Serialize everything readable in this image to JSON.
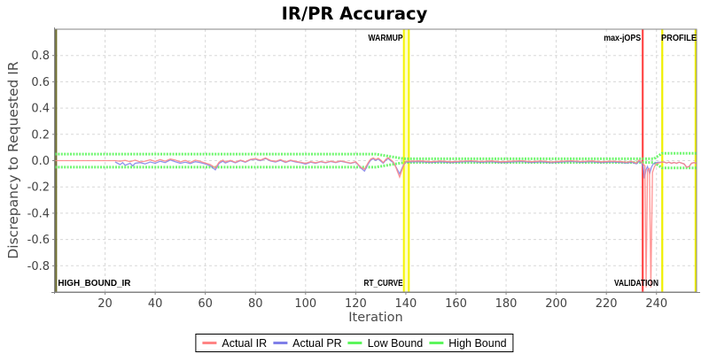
{
  "title": "IR/PR Accuracy",
  "chart_data": {
    "type": "line",
    "title": "IR/PR Accuracy",
    "xlabel": "Iteration",
    "ylabel": "Discrepancy to Requested IR",
    "xlim": [
      0,
      256
    ],
    "ylim": [
      -1,
      1
    ],
    "xticks": [
      20,
      40,
      60,
      80,
      100,
      120,
      140,
      160,
      180,
      200,
      220,
      240
    ],
    "yticks": [
      {
        "v": 0.8,
        "label": "0.8"
      },
      {
        "v": 0.6,
        "label": "0.6"
      },
      {
        "v": 0.4,
        "label": "0.4"
      },
      {
        "v": 0.2,
        "label": "0.2"
      },
      {
        "v": 0.0,
        "label": "0.0"
      },
      {
        "v": -0.2,
        "label": "-0.2"
      },
      {
        "v": -0.4,
        "label": "-0.4"
      },
      {
        "v": -0.6,
        "label": "-0.6"
      },
      {
        "v": -0.8,
        "label": "-0.8"
      }
    ],
    "grid": true,
    "legend_position": "bottom",
    "colors": {
      "actual_ir": "#ff8585",
      "actual_pr": "#7f7fe8",
      "bound": "#5cf65c",
      "marker_yellow": "#f0f000",
      "marker_red": "#ff3333",
      "band_fill": "#ffffc4",
      "border": "#848484",
      "border_left_olive": "#6f6f2d",
      "grid": "#d8d8d8",
      "tick_text": "#434343"
    },
    "series": [
      {
        "name": "Low Bound",
        "color": "#5cf65c",
        "width": 3,
        "opacity": 0.88,
        "dash": "2,1.4",
        "points": [
          [
            0,
            -0.05
          ],
          [
            128,
            -0.05
          ],
          [
            139.3,
            -0.014
          ],
          [
            239,
            -0.014
          ],
          [
            242.2,
            -0.055
          ],
          [
            256,
            -0.055
          ]
        ]
      },
      {
        "name": "High Bound",
        "color": "#5cf65c",
        "width": 3,
        "opacity": 0.88,
        "dash": "2,1.4",
        "points": [
          [
            0,
            0.05
          ],
          [
            128,
            0.05
          ],
          [
            139.3,
            0.014
          ],
          [
            239,
            0.014
          ],
          [
            242.2,
            0.055
          ],
          [
            256,
            0.055
          ]
        ]
      },
      {
        "name": "Actual PR",
        "color": "#7f7fe8",
        "width": 1.3,
        "opacity": 0.85,
        "points": [
          [
            24,
            -0.01
          ],
          [
            26,
            -0.03
          ],
          [
            27,
            -0.015
          ],
          [
            28,
            -0.035
          ],
          [
            30,
            -0.02
          ],
          [
            31,
            -0.04
          ],
          [
            32,
            -0.02
          ],
          [
            34,
            -0.015
          ],
          [
            36,
            -0.025
          ],
          [
            38,
            -0.01
          ],
          [
            40,
            -0.02
          ],
          [
            42,
            -0.005
          ],
          [
            44,
            -0.015
          ],
          [
            46,
            0.005
          ],
          [
            48,
            -0.008
          ],
          [
            50,
            -0.02
          ],
          [
            52,
            -0.012
          ],
          [
            54,
            -0.022
          ],
          [
            56,
            -0.008
          ],
          [
            58,
            -0.015
          ],
          [
            60,
            -0.025
          ],
          [
            62,
            -0.04
          ],
          [
            64,
            -0.07
          ],
          [
            65.5,
            -0.02
          ],
          [
            67,
            -0.005
          ],
          [
            68,
            -0.018
          ],
          [
            70,
            -0.003
          ],
          [
            72,
            -0.016
          ],
          [
            74,
            0
          ],
          [
            76,
            -0.012
          ],
          [
            78,
            0.006
          ],
          [
            80,
            0.011
          ],
          [
            82,
            0
          ],
          [
            84,
            0.016
          ],
          [
            86,
            -0.003
          ],
          [
            88,
            -0.011
          ],
          [
            90,
            0.003
          ],
          [
            92,
            -0.014
          ],
          [
            94,
            0
          ],
          [
            96,
            -0.01
          ],
          [
            98,
            -0.016
          ],
          [
            100,
            -0.026
          ],
          [
            102,
            -0.012
          ],
          [
            104,
            -0.02
          ],
          [
            106,
            -0.009
          ],
          [
            108,
            -0.017
          ],
          [
            110,
            -0.007
          ],
          [
            112,
            -0.015
          ],
          [
            114,
            -0.005
          ],
          [
            116,
            -0.013
          ],
          [
            118,
            -0.021
          ],
          [
            120,
            -0.011
          ],
          [
            122,
            -0.055
          ],
          [
            123.5,
            -0.08
          ],
          [
            125,
            -0.025
          ],
          [
            126,
            0.004
          ],
          [
            127,
            0.014
          ],
          [
            128,
            0.002
          ],
          [
            129,
            0.012
          ],
          [
            130,
            -0.004
          ],
          [
            131,
            -0.02
          ],
          [
            132,
            0.004
          ],
          [
            133,
            0.016
          ],
          [
            134,
            -0.002
          ],
          [
            135,
            -0.015
          ],
          [
            136,
            -0.045
          ],
          [
            137.5,
            -0.1
          ],
          [
            139,
            -0.035
          ],
          [
            140,
            -0.011
          ],
          [
            146,
            -0.008
          ],
          [
            150,
            -0.014
          ],
          [
            154,
            -0.009
          ],
          [
            158,
            -0.015
          ],
          [
            162,
            -0.01
          ],
          [
            166,
            -0.007
          ],
          [
            170,
            -0.013
          ],
          [
            174,
            -0.008
          ],
          [
            178,
            -0.015
          ],
          [
            182,
            -0.011
          ],
          [
            186,
            -0.007
          ],
          [
            190,
            -0.014
          ],
          [
            194,
            -0.009
          ],
          [
            198,
            -0.016
          ],
          [
            202,
            -0.011
          ],
          [
            206,
            -0.007
          ],
          [
            210,
            -0.013
          ],
          [
            214,
            -0.008
          ],
          [
            218,
            -0.015
          ],
          [
            222,
            -0.01
          ],
          [
            226,
            -0.014
          ],
          [
            228,
            -0.018
          ],
          [
            230,
            -0.012
          ],
          [
            232,
            -0.024
          ],
          [
            233,
            -0.006
          ],
          [
            234,
            -0.015
          ],
          [
            234.7,
            -0.05
          ],
          [
            235.2,
            -0.135
          ],
          [
            235.8,
            -0.07
          ],
          [
            236.4,
            -0.045
          ],
          [
            237.3,
            -0.098
          ],
          [
            238,
            -0.05
          ],
          [
            238.7,
            -0.025
          ],
          [
            239.5,
            -0.018
          ],
          [
            240.5,
            -0.013
          ],
          [
            241.5,
            -0.012
          ],
          [
            243,
            -0.01
          ],
          [
            244,
            -0.018
          ],
          [
            245,
            -0.012
          ],
          [
            246,
            -0.02
          ],
          [
            247,
            -0.014
          ],
          [
            248,
            -0.02
          ],
          [
            249,
            -0.012
          ],
          [
            250,
            -0.018
          ],
          [
            251,
            -0.025
          ],
          [
            252,
            -0.05
          ],
          [
            253,
            -0.045
          ],
          [
            254,
            -0.02
          ],
          [
            255,
            -0.015
          ],
          [
            256,
            -0.022
          ]
        ]
      },
      {
        "name": "Actual IR",
        "color": "#ff8585",
        "width": 1.3,
        "opacity": 0.88,
        "points": [
          [
            0,
            0
          ],
          [
            10,
            0
          ],
          [
            20,
            0
          ],
          [
            24,
            0
          ],
          [
            26,
            -0.005
          ],
          [
            28,
            0.002
          ],
          [
            30,
            -0.008
          ],
          [
            32,
            0.004
          ],
          [
            34,
            -0.01
          ],
          [
            36,
            -0.004
          ],
          [
            38,
            0.006
          ],
          [
            40,
            -0.006
          ],
          [
            42,
            0.008
          ],
          [
            44,
            -0.004
          ],
          [
            46,
            0.012
          ],
          [
            48,
            0.004
          ],
          [
            50,
            -0.01
          ],
          [
            52,
            0.002
          ],
          [
            54,
            -0.014
          ],
          [
            56,
            0.004
          ],
          [
            58,
            -0.006
          ],
          [
            60,
            -0.018
          ],
          [
            62,
            -0.03
          ],
          [
            64,
            -0.055
          ],
          [
            65.5,
            -0.012
          ],
          [
            67,
            0.004
          ],
          [
            68,
            -0.01
          ],
          [
            70,
            0.002
          ],
          [
            72,
            -0.012
          ],
          [
            74,
            0.004
          ],
          [
            76,
            -0.008
          ],
          [
            78,
            0.01
          ],
          [
            80,
            0.015
          ],
          [
            82,
            0.004
          ],
          [
            84,
            0.02
          ],
          [
            86,
            0.002
          ],
          [
            88,
            -0.006
          ],
          [
            90,
            0.008
          ],
          [
            92,
            -0.01
          ],
          [
            94,
            0.004
          ],
          [
            96,
            -0.006
          ],
          [
            98,
            -0.012
          ],
          [
            100,
            -0.02
          ],
          [
            102,
            -0.008
          ],
          [
            104,
            -0.016
          ],
          [
            106,
            -0.006
          ],
          [
            108,
            -0.014
          ],
          [
            110,
            -0.004
          ],
          [
            112,
            -0.012
          ],
          [
            114,
            -0.002
          ],
          [
            116,
            -0.01
          ],
          [
            118,
            -0.018
          ],
          [
            120,
            -0.008
          ],
          [
            122,
            -0.05
          ],
          [
            123.5,
            -0.065
          ],
          [
            125,
            -0.015
          ],
          [
            126,
            0.012
          ],
          [
            127,
            0.02
          ],
          [
            128,
            0.008
          ],
          [
            129,
            0.018
          ],
          [
            130,
            0.004
          ],
          [
            131,
            -0.015
          ],
          [
            132,
            0.01
          ],
          [
            133,
            0.022
          ],
          [
            134,
            0.006
          ],
          [
            135,
            -0.01
          ],
          [
            136,
            -0.05
          ],
          [
            137.5,
            -0.125
          ],
          [
            139,
            -0.04
          ],
          [
            140,
            -0.005
          ],
          [
            146,
            -0.002
          ],
          [
            150,
            -0.008
          ],
          [
            154,
            -0.003
          ],
          [
            158,
            -0.009
          ],
          [
            162,
            -0.004
          ],
          [
            166,
            -0.001
          ],
          [
            170,
            -0.007
          ],
          [
            174,
            -0.002
          ],
          [
            178,
            -0.009
          ],
          [
            182,
            -0.005
          ],
          [
            186,
            -0.001
          ],
          [
            190,
            -0.008
          ],
          [
            194,
            -0.003
          ],
          [
            198,
            -0.01
          ],
          [
            202,
            -0.005
          ],
          [
            206,
            -0.001
          ],
          [
            210,
            -0.007
          ],
          [
            214,
            -0.002
          ],
          [
            218,
            -0.009
          ],
          [
            222,
            -0.004
          ],
          [
            226,
            -0.008
          ],
          [
            228,
            -0.012
          ],
          [
            230,
            -0.006
          ],
          [
            232,
            -0.018
          ],
          [
            233,
            0.004
          ],
          [
            234,
            -0.012
          ],
          [
            234.8,
            -0.028
          ],
          [
            235.4,
            -0.04
          ],
          [
            235.85,
            -0.965
          ],
          [
            236.4,
            -0.07
          ],
          [
            237.2,
            -0.06
          ],
          [
            237.75,
            -0.965
          ],
          [
            238.4,
            -0.09
          ],
          [
            239.2,
            -0.045
          ],
          [
            240,
            -0.022
          ],
          [
            241.5,
            -0.015
          ],
          [
            243,
            -0.01
          ],
          [
            244,
            -0.018
          ],
          [
            245,
            -0.012
          ],
          [
            246,
            -0.02
          ],
          [
            247,
            -0.014
          ],
          [
            248,
            -0.02
          ],
          [
            249,
            -0.012
          ],
          [
            250,
            -0.018
          ],
          [
            251,
            -0.025
          ],
          [
            252,
            -0.05
          ],
          [
            253,
            -0.045
          ],
          [
            254,
            -0.02
          ],
          [
            255,
            -0.015
          ],
          [
            256,
            -0.022
          ]
        ]
      }
    ],
    "markers": [
      {
        "type": "band",
        "x1": 139.2,
        "x2": 141.2,
        "edge": "#f4f400",
        "fill": "#ffffc4"
      },
      {
        "type": "line",
        "x": 0.4,
        "color": "#6f6f2d",
        "width": 2.5,
        "opacity": 1
      },
      {
        "type": "line",
        "x": 234.5,
        "color": "#ff3333",
        "width": 2.2,
        "opacity": 0.9
      },
      {
        "type": "line",
        "x": 242.3,
        "color": "#f0f000",
        "width": 2.2,
        "opacity": 1
      },
      {
        "type": "line",
        "x": 255.6,
        "color": "#f0f000",
        "width": 2.2,
        "opacity": 1
      }
    ],
    "annotations": [
      {
        "text": "WARMUP",
        "x": 138.8,
        "anchor": "end",
        "pos": "top",
        "tl": 39
      },
      {
        "text": "max-jOPS",
        "x": 233.8,
        "anchor": "end",
        "pos": "top",
        "tl": 42
      },
      {
        "text": "PROFILE",
        "x": 256,
        "anchor": "end",
        "pos": "top",
        "tl": 40
      },
      {
        "text": "HIGH_BOUND_IR",
        "x": 1.2,
        "anchor": "start",
        "pos": "bottom",
        "tl": 82
      },
      {
        "text": "RT_CURVE",
        "x": 138.8,
        "anchor": "end",
        "pos": "bottom",
        "tl": 44
      },
      {
        "text": "VALIDATION",
        "x": 240.8,
        "anchor": "end",
        "pos": "bottom",
        "tl": 50
      }
    ],
    "legend": [
      {
        "label": "Actual IR",
        "color": "#ff8585"
      },
      {
        "label": "Actual PR",
        "color": "#7f7fe8"
      },
      {
        "label": "Low Bound",
        "color": "#5cf65c"
      },
      {
        "label": "High Bound",
        "color": "#5cf65c"
      }
    ]
  }
}
